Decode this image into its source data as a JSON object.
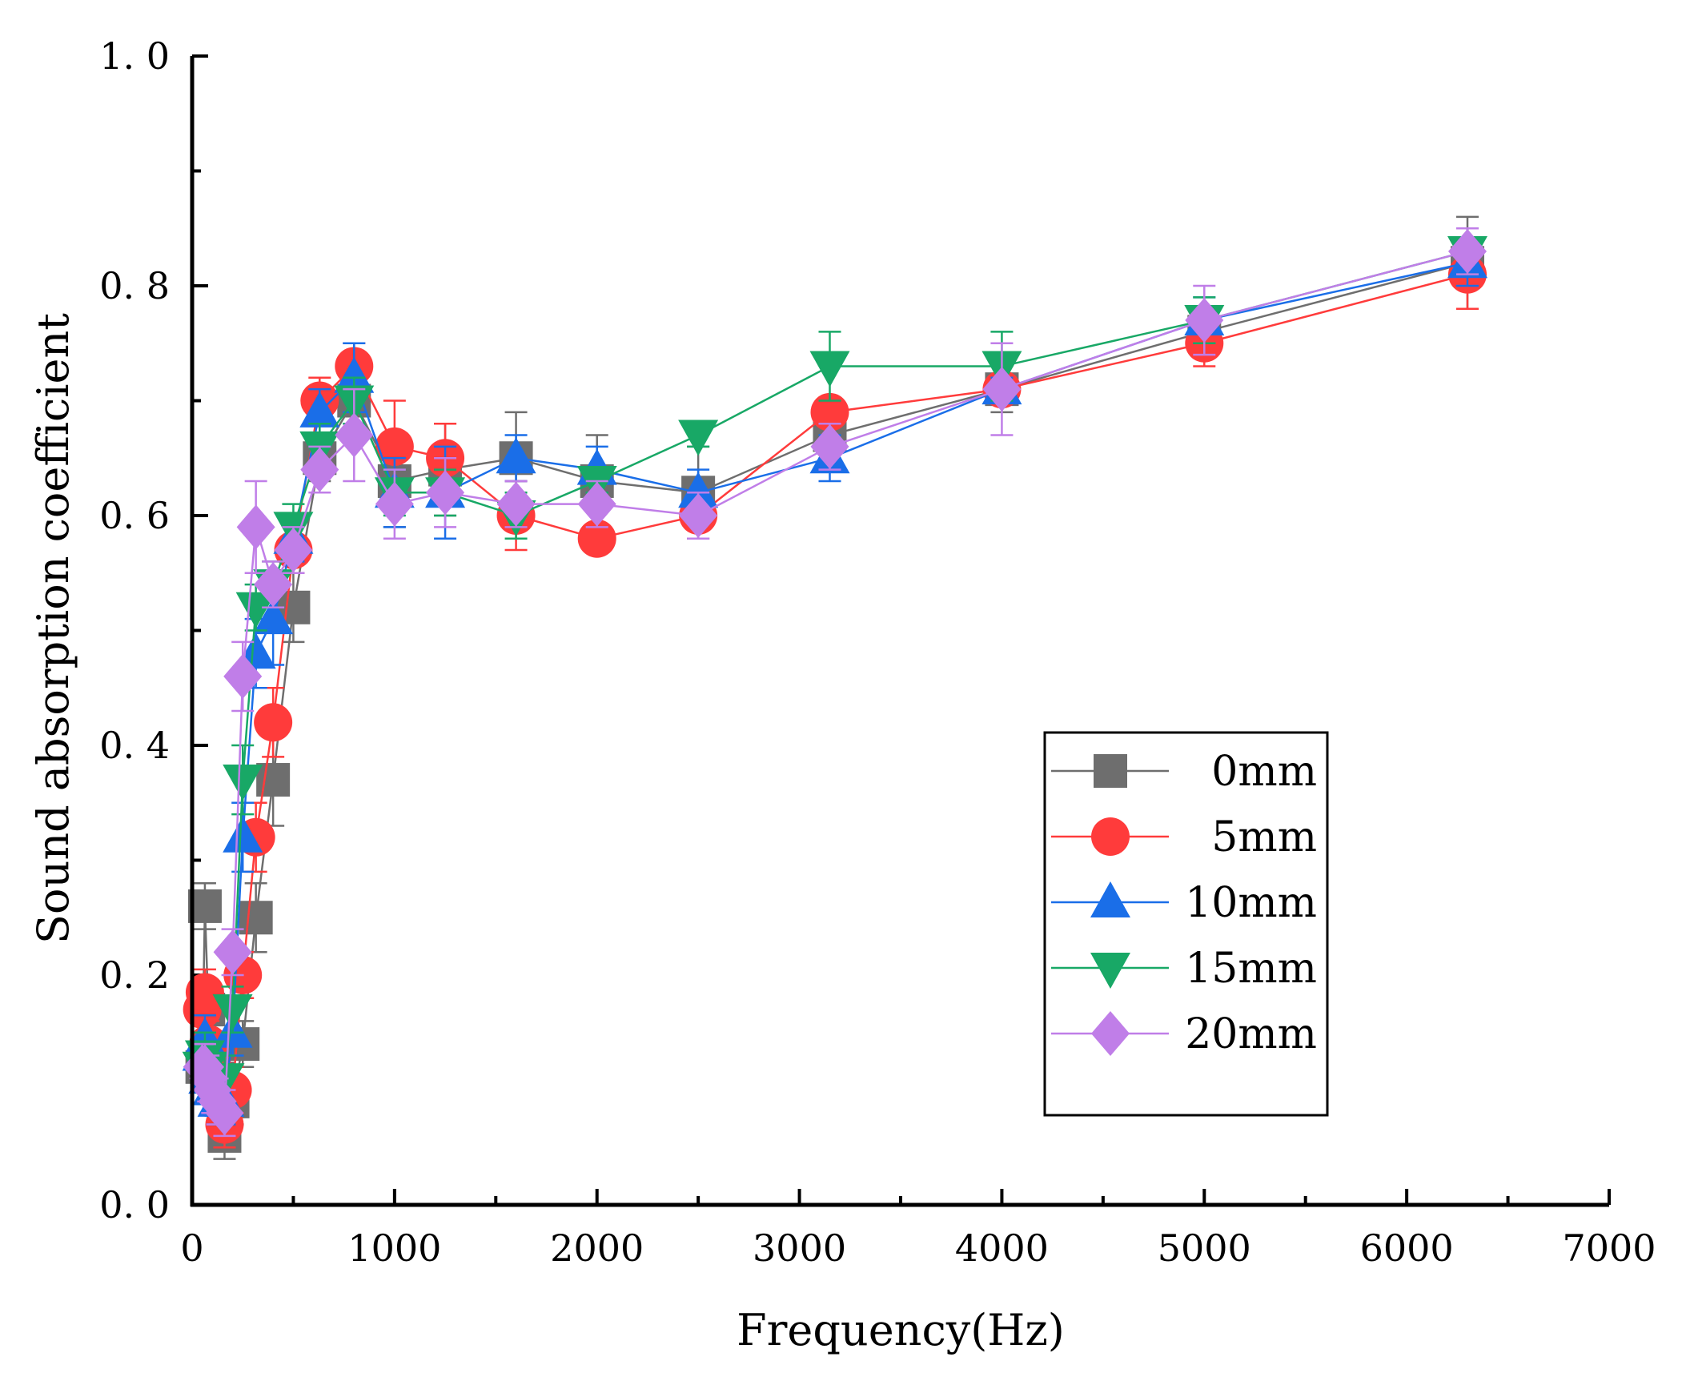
{
  "chart_data": {
    "type": "line",
    "title": "",
    "xlabel": "Frequency(Hz)",
    "ylabel": "Sound absorption coefficient",
    "xlim": [
      0,
      7000
    ],
    "ylim": [
      0.0,
      1.0
    ],
    "xticks": [
      0,
      1000,
      2000,
      3000,
      4000,
      5000,
      6000,
      7000
    ],
    "xtick_labels": [
      "0",
      "1000",
      "2000",
      "3000",
      "4000",
      "5000",
      "6000",
      "7000"
    ],
    "yticks": [
      0.0,
      0.2,
      0.4,
      0.6,
      0.8,
      1.0
    ],
    "ytick_labels": [
      "0. 0",
      "0. 2",
      "0. 4",
      "0. 6",
      "0. 8",
      "1. 0"
    ],
    "legend_position": "center-right",
    "x": [
      50,
      63,
      80,
      100,
      125,
      160,
      200,
      250,
      315,
      400,
      500,
      630,
      800,
      1000,
      1250,
      1600,
      2000,
      2500,
      3150,
      4000,
      5000,
      6300
    ],
    "series": [
      {
        "name": "0mm",
        "color": "#6e6e6e",
        "marker": "square",
        "values": [
          0.12,
          0.26,
          0.17,
          0.13,
          0.11,
          0.06,
          0.09,
          0.14,
          0.25,
          0.37,
          0.52,
          0.65,
          0.7,
          0.63,
          0.64,
          0.65,
          0.63,
          0.62,
          0.67,
          0.71,
          0.76,
          0.82
        ],
        "errors": [
          0.02,
          0.02,
          0.02,
          0.02,
          0.02,
          0.02,
          0.02,
          0.02,
          0.03,
          0.04,
          0.03,
          0.02,
          0.03,
          0.04,
          0.04,
          0.04,
          0.04,
          0.04,
          0.02,
          0.02,
          0.02,
          0.04
        ]
      },
      {
        "name": "5mm",
        "color": "#ff3b3b",
        "marker": "circle",
        "values": [
          0.17,
          0.185,
          0.14,
          0.12,
          0.1,
          0.07,
          0.1,
          0.2,
          0.32,
          0.42,
          0.57,
          0.7,
          0.73,
          0.66,
          0.65,
          0.6,
          0.58,
          0.6,
          0.69,
          0.71,
          0.75,
          0.81
        ],
        "errors": [
          0.02,
          0.02,
          0.02,
          0.02,
          0.02,
          0.02,
          0.02,
          0.02,
          0.03,
          0.03,
          0.02,
          0.02,
          0.02,
          0.04,
          0.03,
          0.03,
          0.01,
          0.01,
          0.01,
          0.01,
          0.02,
          0.03
        ]
      },
      {
        "name": "10mm",
        "color": "#1a6ee8",
        "marker": "triangle-up",
        "values": [
          0.13,
          0.145,
          0.11,
          0.1,
          0.09,
          0.09,
          0.15,
          0.32,
          0.48,
          0.51,
          0.58,
          0.69,
          0.72,
          0.62,
          0.62,
          0.65,
          0.64,
          0.62,
          0.65,
          0.71,
          0.77,
          0.82
        ],
        "errors": [
          0.02,
          0.02,
          0.02,
          0.02,
          0.02,
          0.02,
          0.02,
          0.03,
          0.03,
          0.04,
          0.02,
          0.02,
          0.03,
          0.03,
          0.04,
          0.02,
          0.02,
          0.02,
          0.02,
          0.01,
          0.02,
          0.02
        ]
      },
      {
        "name": "15mm",
        "color": "#18a866",
        "marker": "triangle-down",
        "values": [
          0.12,
          0.13,
          0.12,
          0.11,
          0.1,
          0.11,
          0.17,
          0.37,
          0.52,
          0.54,
          0.59,
          0.66,
          0.7,
          0.62,
          0.62,
          0.6,
          0.63,
          0.67,
          0.73,
          0.73,
          0.77,
          0.83
        ],
        "errors": [
          0.02,
          0.02,
          0.02,
          0.02,
          0.02,
          0.02,
          0.02,
          0.03,
          0.02,
          0.02,
          0.02,
          0.02,
          0.02,
          0.02,
          0.02,
          0.02,
          0.01,
          0.01,
          0.03,
          0.03,
          0.02,
          0.02
        ]
      },
      {
        "name": "20mm",
        "color": "#c07ee8",
        "marker": "diamond",
        "values": [
          0.12,
          0.12,
          0.11,
          0.1,
          0.09,
          0.08,
          0.22,
          0.46,
          0.59,
          0.54,
          0.57,
          0.64,
          0.67,
          0.61,
          0.62,
          0.61,
          0.61,
          0.6,
          0.66,
          0.71,
          0.77,
          0.83
        ],
        "errors": [
          0.02,
          0.02,
          0.02,
          0.02,
          0.02,
          0.02,
          0.02,
          0.03,
          0.04,
          0.02,
          0.02,
          0.02,
          0.04,
          0.03,
          0.03,
          0.02,
          0.02,
          0.02,
          0.02,
          0.04,
          0.03,
          0.02
        ]
      }
    ]
  }
}
